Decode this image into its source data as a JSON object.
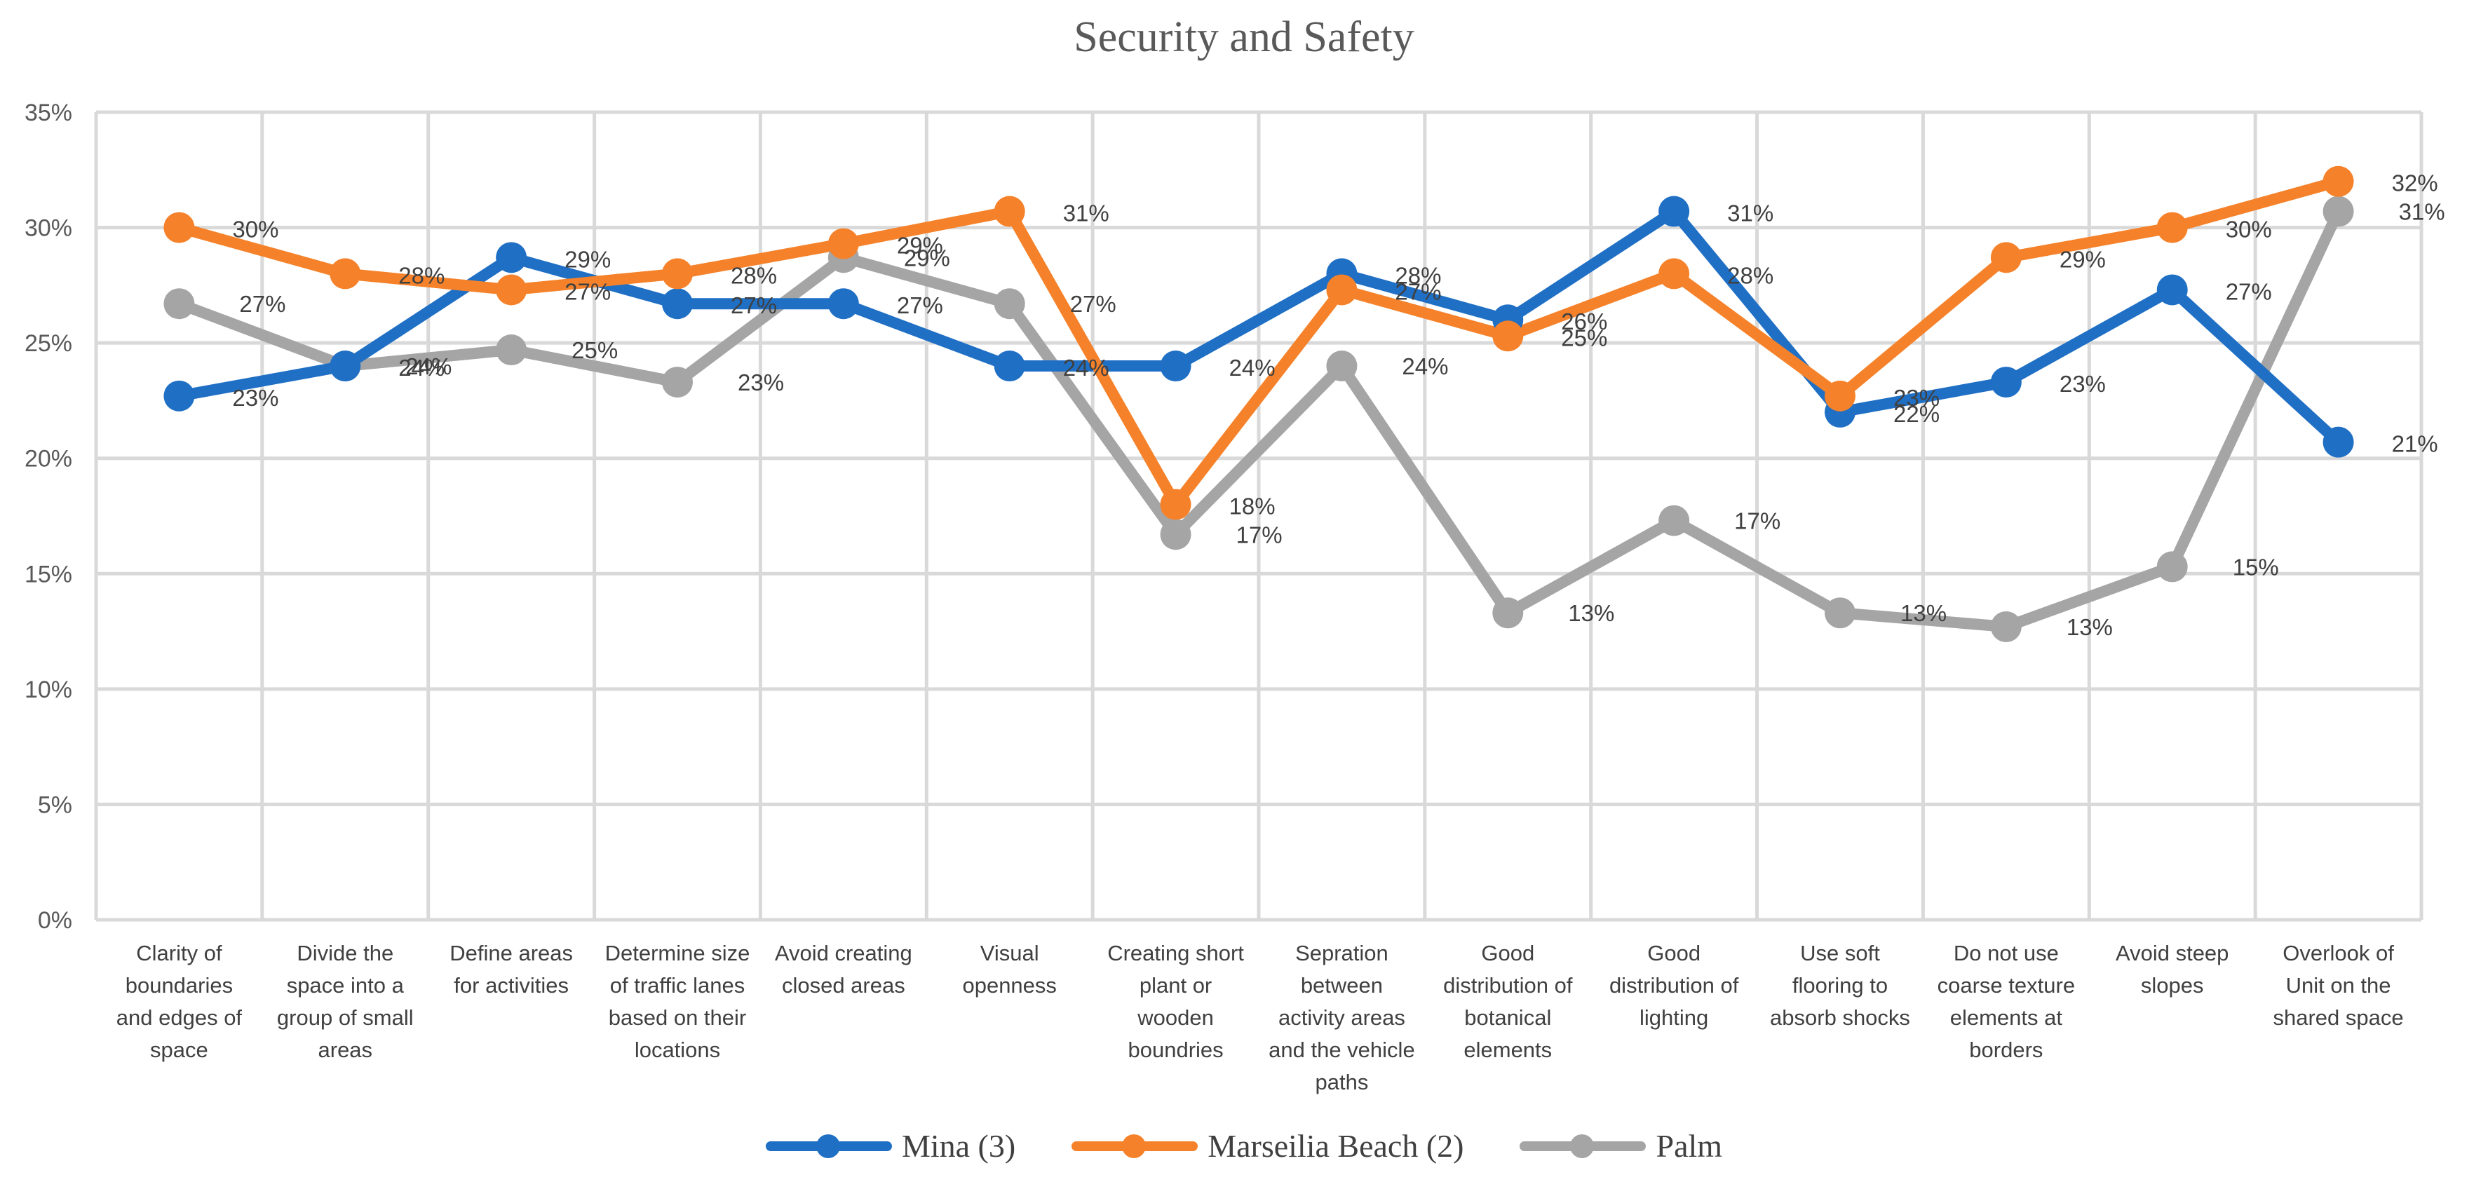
{
  "chart_data": {
    "type": "line",
    "title": "Security and Safety",
    "xlabel": "",
    "ylabel": "",
    "ylim": [
      0,
      35
    ],
    "y_ticks": [
      "0%",
      "5%",
      "10%",
      "15%",
      "20%",
      "25%",
      "30%",
      "35%"
    ],
    "grid": true,
    "legend_position": "bottom",
    "categories": [
      [
        "Clarity of",
        "boundaries",
        "and edges of",
        "space"
      ],
      [
        "Divide the",
        "space into a",
        "group of small",
        "areas"
      ],
      [
        "Define areas",
        "for activities"
      ],
      [
        "Determine size",
        "of traffic lanes",
        "based on their",
        "locations"
      ],
      [
        "Avoid creating",
        "closed areas"
      ],
      [
        "Visual",
        "openness"
      ],
      [
        "Creating short",
        "plant or",
        "wooden",
        "boundries"
      ],
      [
        "Sepration",
        "between",
        "activity areas",
        "and the vehicle",
        "paths"
      ],
      [
        "Good",
        "distribution of",
        "botanical",
        "elements"
      ],
      [
        "Good",
        "distribution of",
        "lighting"
      ],
      [
        "Use soft",
        "flooring to",
        "absorb shocks"
      ],
      [
        "Do not use",
        "coarse texture",
        "elements at",
        "borders"
      ],
      [
        "Avoid steep",
        "slopes"
      ],
      [
        "Overlook of",
        "Unit on the",
        "shared space"
      ]
    ],
    "series": [
      {
        "name": "Mina (3)",
        "color": "#1f6fc5",
        "values": [
          22.7,
          24.0,
          28.7,
          26.7,
          26.7,
          24.0,
          24.0,
          28.0,
          26.0,
          30.7,
          22.0,
          23.3,
          27.3,
          20.7
        ],
        "labels": [
          "23%",
          "24%",
          "29%",
          "27%",
          "27%",
          "24%",
          "24%",
          "28%",
          "26%",
          "31%",
          "22%",
          "23%",
          "27%",
          "21%"
        ]
      },
      {
        "name": "Marseilia Beach (2)",
        "color": "#f5822a",
        "values": [
          30.0,
          28.0,
          27.3,
          28.0,
          29.3,
          30.7,
          18.0,
          27.3,
          25.3,
          28.0,
          22.7,
          28.7,
          30.0,
          32.0
        ],
        "labels": [
          "30%",
          "28%",
          "27%",
          "28%",
          "29%",
          "31%",
          "18%",
          "27%",
          "25%",
          "28%",
          "23%",
          "29%",
          "30%",
          "32%"
        ]
      },
      {
        "name": "Palm",
        "color": "#a5a5a5",
        "values": [
          26.7,
          24.0,
          24.7,
          23.3,
          28.7,
          26.7,
          16.7,
          24.0,
          13.3,
          17.3,
          13.3,
          12.7,
          15.3,
          30.7
        ],
        "labels": [
          "27%",
          "24%",
          "25%",
          "23%",
          "29%",
          "27%",
          "17%",
          "24%",
          "13%",
          "17%",
          "13%",
          "13%",
          "15%",
          "31%"
        ]
      }
    ]
  }
}
